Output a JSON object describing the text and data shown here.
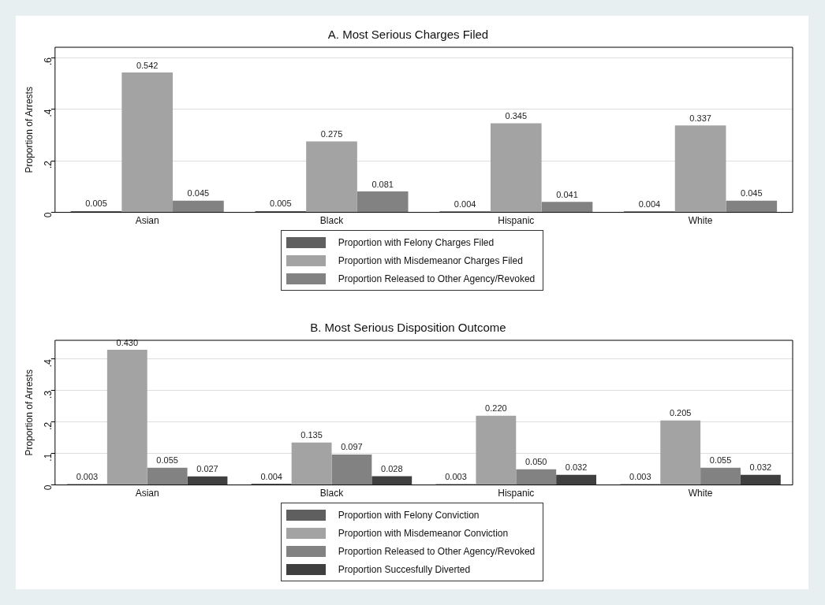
{
  "chart_data": [
    {
      "type": "bar",
      "title": "A. Most Serious Charges Filed",
      "ylabel": "Proportion of Arrests",
      "categories": [
        "Asian",
        "Black",
        "Hispanic",
        "White"
      ],
      "series": [
        {
          "name": "Proportion with Felony Charges Filed",
          "color": "#5f5f5f",
          "values": [
            0.005,
            0.005,
            0.004,
            0.004
          ],
          "value_labels": [
            "0.005",
            "0.005",
            "0.004",
            "0.004"
          ]
        },
        {
          "name": "Proportion with Misdemeanor Charges Filed",
          "color": "#a3a3a3",
          "values": [
            0.542,
            0.275,
            0.345,
            0.337
          ],
          "value_labels": [
            "0.542",
            "0.275",
            "0.345",
            "0.337"
          ]
        },
        {
          "name": "Proportion Released to Other Agency/Revoked",
          "color": "#828282",
          "values": [
            0.045,
            0.081,
            0.041,
            0.045
          ],
          "value_labels": [
            "0.045",
            "0.081",
            "0.041",
            "0.045"
          ]
        }
      ],
      "ylim": [
        0,
        0.64
      ],
      "yticks": [
        {
          "value": 0,
          "label": "0"
        },
        {
          "value": 0.2,
          "label": ".2"
        },
        {
          "value": 0.4,
          "label": ".4"
        },
        {
          "value": 0.6,
          "label": ".6"
        }
      ],
      "grid": "y",
      "legend": "bottom"
    },
    {
      "type": "bar",
      "title": "B. Most Serious Disposition Outcome",
      "ylabel": "Proportion of Arrests",
      "categories": [
        "Asian",
        "Black",
        "Hispanic",
        "White"
      ],
      "series": [
        {
          "name": "Proportion with Felony Conviction",
          "color": "#5f5f5f",
          "values": [
            0.003,
            0.004,
            0.003,
            0.003
          ],
          "value_labels": [
            "0.003",
            "0.004",
            "0.003",
            "0.003"
          ]
        },
        {
          "name": "Proportion with Misdemeanor Conviction",
          "color": "#a3a3a3",
          "values": [
            0.43,
            0.135,
            0.22,
            0.205
          ],
          "value_labels": [
            "0.430",
            "0.135",
            "0.220",
            "0.205"
          ]
        },
        {
          "name": "Proportion Released to Other Agency/Revoked",
          "color": "#828282",
          "values": [
            0.055,
            0.097,
            0.05,
            0.055
          ],
          "value_labels": [
            "0.055",
            "0.097",
            "0.050",
            "0.055"
          ]
        },
        {
          "name": "Proportion Succesfully Diverted",
          "color": "#3f3f3f",
          "values": [
            0.027,
            0.028,
            0.032,
            0.032
          ],
          "value_labels": [
            "0.027",
            "0.028",
            "0.032",
            "0.032"
          ]
        }
      ],
      "ylim": [
        0,
        0.46
      ],
      "yticks": [
        {
          "value": 0,
          "label": "0"
        },
        {
          "value": 0.1,
          "label": ".1"
        },
        {
          "value": 0.2,
          "label": ".2"
        },
        {
          "value": 0.3,
          "label": ".3"
        },
        {
          "value": 0.4,
          "label": ".4"
        }
      ],
      "grid": "y",
      "legend": "bottom"
    }
  ]
}
